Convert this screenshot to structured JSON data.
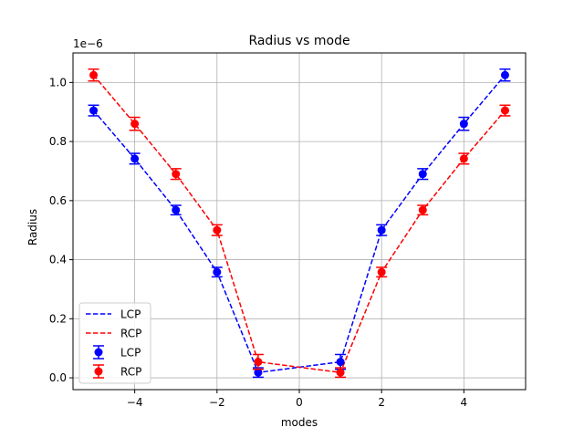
{
  "chart_data": {
    "type": "line",
    "title": "Radius vs mode",
    "xlabel": "modes",
    "ylabel": "Radius",
    "y_multiplier_label": "1e−6",
    "xlim": [
      -5.5,
      5.5
    ],
    "ylim": [
      -0.04,
      1.1
    ],
    "x_ticks": [
      -4,
      -2,
      0,
      2,
      4
    ],
    "x_tick_labels": [
      "−4",
      "−2",
      "0",
      "2",
      "4"
    ],
    "y_ticks": [
      0.0,
      0.2,
      0.4,
      0.6,
      0.8,
      1.0
    ],
    "y_tick_labels": [
      "0.0",
      "0.2",
      "0.4",
      "0.6",
      "0.8",
      "1.0"
    ],
    "grid": true,
    "legend_position": "lower-left",
    "x": [
      -5,
      -4,
      -3,
      -2,
      -1,
      1,
      2,
      3,
      4,
      5
    ],
    "series": [
      {
        "name": "LCP",
        "color": "#0000ff",
        "line_x": [
          -5,
          -4,
          -3,
          -2,
          -1,
          0,
          1,
          2,
          3,
          4,
          5
        ],
        "line_y": [
          0.905,
          0.742,
          0.568,
          0.358,
          0.018,
          0.036,
          0.054,
          0.5,
          0.69,
          0.86,
          1.025
        ],
        "values": [
          0.905,
          0.742,
          0.568,
          0.358,
          0.018,
          0.054,
          0.5,
          0.69,
          0.86,
          1.025
        ],
        "errors": [
          0.018,
          0.018,
          0.016,
          0.016,
          0.016,
          0.025,
          0.018,
          0.018,
          0.022,
          0.02
        ]
      },
      {
        "name": "RCP",
        "color": "#ff0000",
        "line_x": [
          -5,
          -4,
          -3,
          -2,
          -1,
          0,
          1,
          2,
          3,
          4,
          5
        ],
        "line_y": [
          1.025,
          0.86,
          0.69,
          0.5,
          0.054,
          0.036,
          0.018,
          0.358,
          0.568,
          0.742,
          0.905
        ],
        "values": [
          1.025,
          0.86,
          0.69,
          0.5,
          0.054,
          0.018,
          0.358,
          0.568,
          0.742,
          0.905
        ],
        "errors": [
          0.02,
          0.022,
          0.018,
          0.018,
          0.025,
          0.016,
          0.016,
          0.016,
          0.018,
          0.018
        ]
      }
    ],
    "legend_entries": [
      {
        "label": "LCP",
        "kind": "line",
        "color": "#0000ff"
      },
      {
        "label": "RCP",
        "kind": "line",
        "color": "#ff0000"
      },
      {
        "label": "LCP",
        "kind": "errorbar",
        "color": "#0000ff"
      },
      {
        "label": "RCP",
        "kind": "errorbar",
        "color": "#ff0000"
      }
    ]
  }
}
